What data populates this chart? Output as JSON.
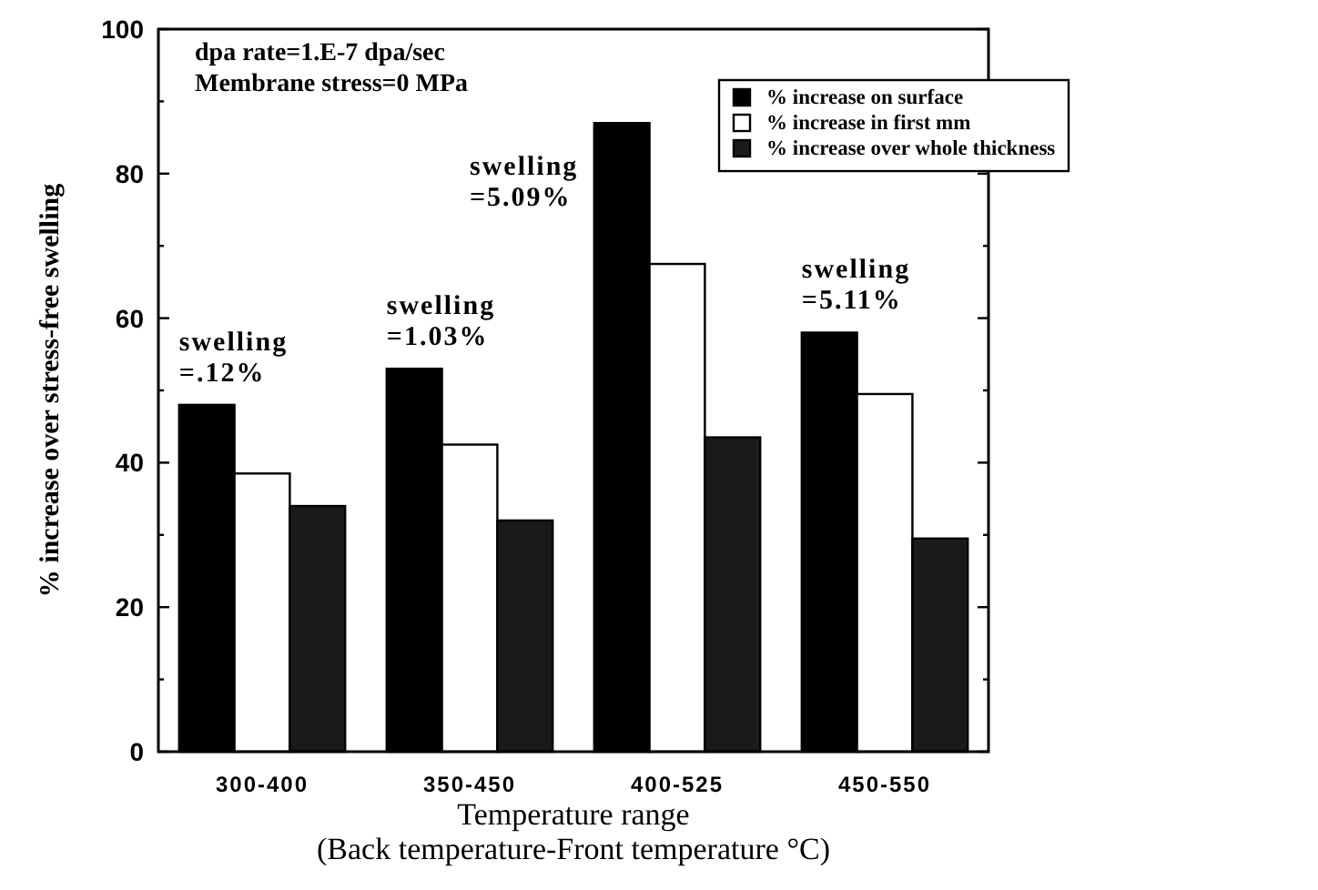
{
  "chart_data": {
    "type": "bar",
    "xlabel": "Temperature range\n(Back temperature-Front temperature °C)",
    "ylabel": "% increase over stress-free swelling",
    "categories": [
      "300-400",
      "350-450",
      "400-525",
      "450-550"
    ],
    "series": [
      {
        "name": "% increase on surface",
        "color": "#000000",
        "values": [
          48,
          53,
          87,
          58
        ]
      },
      {
        "name": "% increase in first mm",
        "color": "#ffffff",
        "values": [
          38.5,
          42.5,
          67.5,
          49.5
        ]
      },
      {
        "name": "% increase over whole thickness",
        "color": "#1a1a1a",
        "values": [
          34,
          32,
          43.5,
          29.5
        ]
      }
    ],
    "ylim": [
      0,
      100
    ],
    "yticks": [
      0,
      {
        "value": 10,
        "label": null
      },
      20,
      {
        "value": 30,
        "label": null
      },
      40,
      {
        "value": 50,
        "label": null
      },
      60,
      {
        "value": 70,
        "label": null
      },
      80,
      {
        "value": 90,
        "label": null
      },
      100
    ],
    "grid": false,
    "legend": "top right",
    "annotations": [
      "dpa rate=1.E-7 dpa/sec\nMembrane stress=0 MPa",
      "swelling\n=.12%",
      "swelling\n=1.03%",
      "swelling\n=5.09%",
      "swelling\n=5.11%"
    ]
  }
}
